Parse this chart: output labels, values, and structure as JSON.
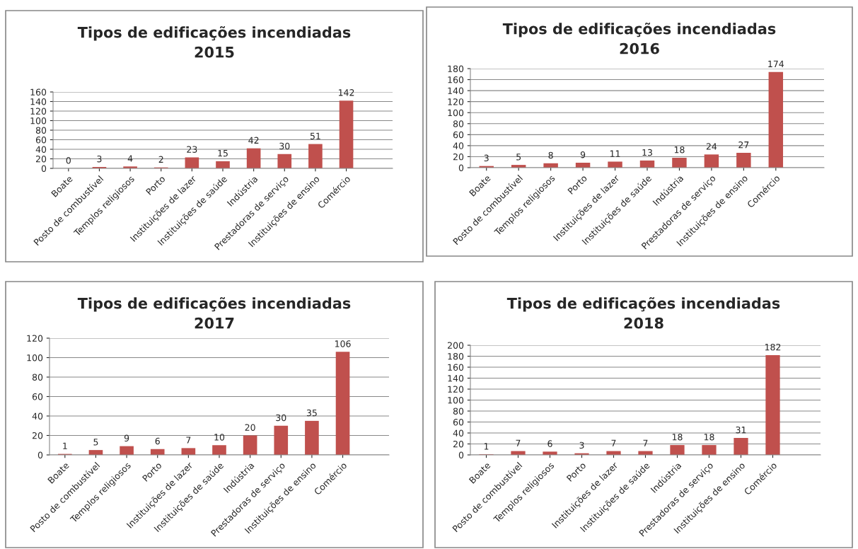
{
  "chart_data": [
    {
      "type": "bar",
      "title": "Tipos de edificações incendiadas\n2015",
      "categories": [
        "Boate",
        "Posto de combustível",
        "Templos religiosos",
        "Porto",
        "Instituições de lazer",
        "Instituições de saúde",
        "Indústria",
        "Prestadoras de serviço",
        "Instituições de ensino",
        "Comércio"
      ],
      "values": [
        0,
        3,
        4,
        2,
        23,
        15,
        42,
        30,
        51,
        142
      ],
      "color": "#c0504d",
      "ylim": [
        0,
        160
      ],
      "yticks": [
        0,
        20,
        40,
        60,
        80,
        100,
        120,
        140,
        160
      ],
      "grid": "y",
      "data_labels": true
    },
    {
      "type": "bar",
      "title": "Tipos de edificações incendiadas\n2016",
      "categories": [
        "Boate",
        "Posto de combustível",
        "Templos religiosos",
        "Porto",
        "Instituições de lazer",
        "Instituições de saúde",
        "Indústria",
        "Prestadoras de serviço",
        "Instituições de ensino",
        "Comércio"
      ],
      "values": [
        3,
        5,
        8,
        9,
        11,
        13,
        18,
        24,
        27,
        174
      ],
      "color": "#c0504d",
      "ylim": [
        0,
        180
      ],
      "yticks": [
        0,
        20,
        40,
        60,
        80,
        100,
        120,
        140,
        160,
        180
      ],
      "grid": "y",
      "data_labels": true
    },
    {
      "type": "bar",
      "title": "Tipos de edificações incendiadas\n2017",
      "categories": [
        "Boate",
        "Posto de combustível",
        "Templos religiosos",
        "Porto",
        "Instituições de lazer",
        "Instituições de saúde",
        "Indústria",
        "Prestadoras de serviço",
        "Instituições de ensino",
        "Comércio"
      ],
      "values": [
        1,
        5,
        9,
        6,
        7,
        10,
        20,
        30,
        35,
        106
      ],
      "color": "#c0504d",
      "ylim": [
        0,
        120
      ],
      "yticks": [
        0,
        20,
        40,
        60,
        80,
        100,
        120
      ],
      "grid": "y",
      "data_labels": true
    },
    {
      "type": "bar",
      "title": "Tipos de edificações incendiadas\n2018",
      "categories": [
        "Boate",
        "Posto de combustível",
        "Templos religiosos",
        "Porto",
        "Instituições de lazer",
        "Instituições de saúde",
        "Indústria",
        "Prestadoras de serviço",
        "Instituições de ensino",
        "Comércio"
      ],
      "values": [
        1,
        7,
        6,
        3,
        7,
        7,
        18,
        18,
        31,
        182
      ],
      "color": "#c0504d",
      "ylim": [
        0,
        200
      ],
      "yticks": [
        0,
        20,
        40,
        60,
        80,
        100,
        120,
        140,
        160,
        180,
        200
      ],
      "grid": "y",
      "data_labels": true
    }
  ]
}
